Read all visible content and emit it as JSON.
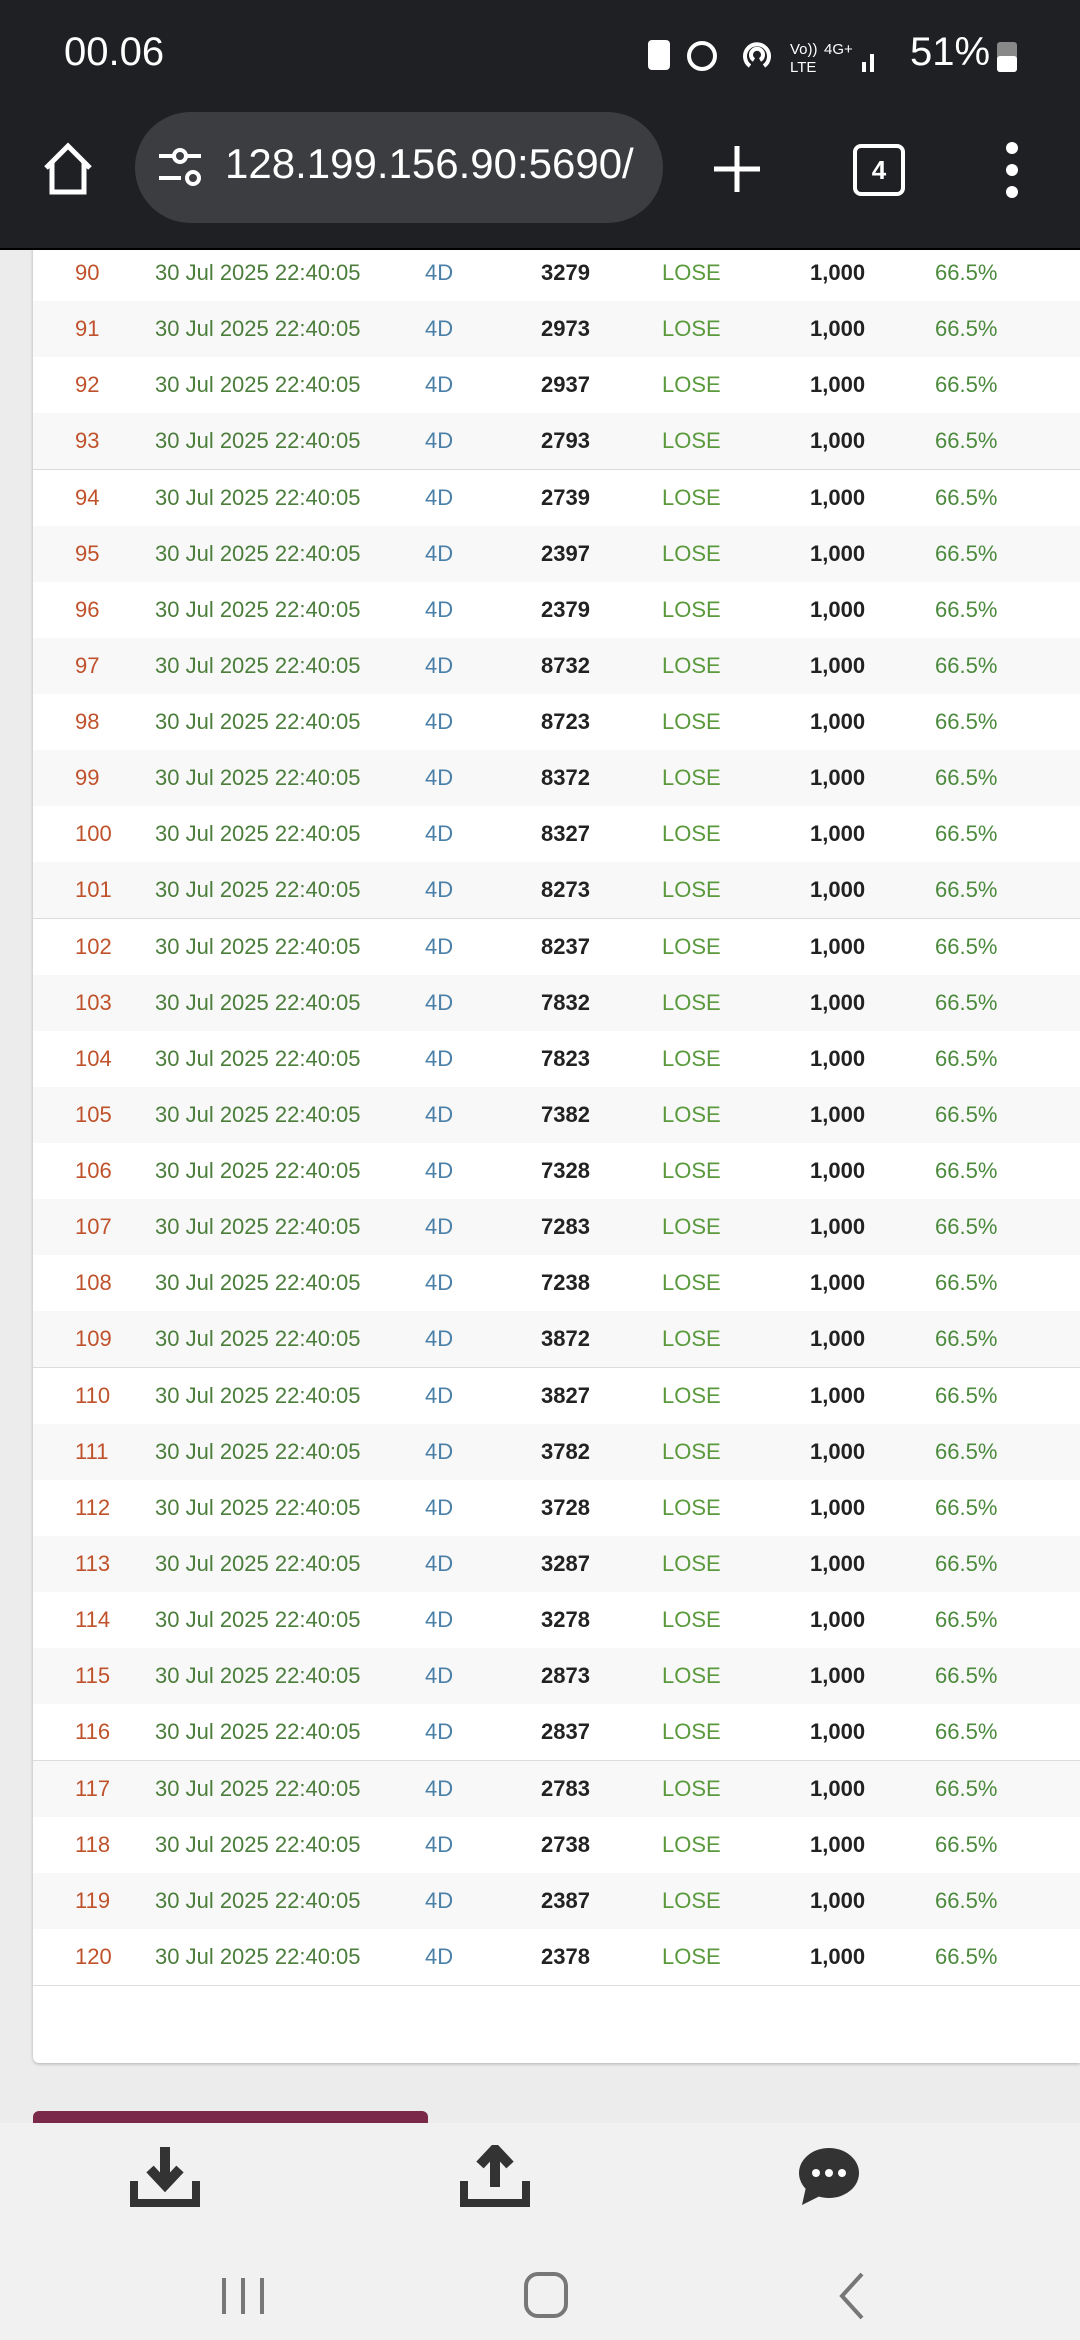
{
  "status_bar": {
    "time": "00.06",
    "battery": "51%"
  },
  "browser": {
    "url": "128.199.156.90:5690/",
    "tab_count": "4"
  },
  "table": {
    "rows": [
      [
        "90",
        "30 Jul 2025 22:40:05",
        "4D",
        "3279",
        "LOSE",
        "1,000",
        "66.5%"
      ],
      [
        "91",
        "30 Jul 2025 22:40:05",
        "4D",
        "2973",
        "LOSE",
        "1,000",
        "66.5%"
      ],
      [
        "92",
        "30 Jul 2025 22:40:05",
        "4D",
        "2937",
        "LOSE",
        "1,000",
        "66.5%"
      ],
      [
        "93",
        "30 Jul 2025 22:40:05",
        "4D",
        "2793",
        "LOSE",
        "1,000",
        "66.5%"
      ],
      [
        "94",
        "30 Jul 2025 22:40:05",
        "4D",
        "2739",
        "LOSE",
        "1,000",
        "66.5%"
      ],
      [
        "95",
        "30 Jul 2025 22:40:05",
        "4D",
        "2397",
        "LOSE",
        "1,000",
        "66.5%"
      ],
      [
        "96",
        "30 Jul 2025 22:40:05",
        "4D",
        "2379",
        "LOSE",
        "1,000",
        "66.5%"
      ],
      [
        "97",
        "30 Jul 2025 22:40:05",
        "4D",
        "8732",
        "LOSE",
        "1,000",
        "66.5%"
      ],
      [
        "98",
        "30 Jul 2025 22:40:05",
        "4D",
        "8723",
        "LOSE",
        "1,000",
        "66.5%"
      ],
      [
        "99",
        "30 Jul 2025 22:40:05",
        "4D",
        "8372",
        "LOSE",
        "1,000",
        "66.5%"
      ],
      [
        "100",
        "30 Jul 2025 22:40:05",
        "4D",
        "8327",
        "LOSE",
        "1,000",
        "66.5%"
      ],
      [
        "101",
        "30 Jul 2025 22:40:05",
        "4D",
        "8273",
        "LOSE",
        "1,000",
        "66.5%"
      ],
      [
        "102",
        "30 Jul 2025 22:40:05",
        "4D",
        "8237",
        "LOSE",
        "1,000",
        "66.5%"
      ],
      [
        "103",
        "30 Jul 2025 22:40:05",
        "4D",
        "7832",
        "LOSE",
        "1,000",
        "66.5%"
      ],
      [
        "104",
        "30 Jul 2025 22:40:05",
        "4D",
        "7823",
        "LOSE",
        "1,000",
        "66.5%"
      ],
      [
        "105",
        "30 Jul 2025 22:40:05",
        "4D",
        "7382",
        "LOSE",
        "1,000",
        "66.5%"
      ],
      [
        "106",
        "30 Jul 2025 22:40:05",
        "4D",
        "7328",
        "LOSE",
        "1,000",
        "66.5%"
      ],
      [
        "107",
        "30 Jul 2025 22:40:05",
        "4D",
        "7283",
        "LOSE",
        "1,000",
        "66.5%"
      ],
      [
        "108",
        "30 Jul 2025 22:40:05",
        "4D",
        "7238",
        "LOSE",
        "1,000",
        "66.5%"
      ],
      [
        "109",
        "30 Jul 2025 22:40:05",
        "4D",
        "3872",
        "LOSE",
        "1,000",
        "66.5%"
      ],
      [
        "110",
        "30 Jul 2025 22:40:05",
        "4D",
        "3827",
        "LOSE",
        "1,000",
        "66.5%"
      ],
      [
        "111",
        "30 Jul 2025 22:40:05",
        "4D",
        "3782",
        "LOSE",
        "1,000",
        "66.5%"
      ],
      [
        "112",
        "30 Jul 2025 22:40:05",
        "4D",
        "3728",
        "LOSE",
        "1,000",
        "66.5%"
      ],
      [
        "113",
        "30 Jul 2025 22:40:05",
        "4D",
        "3287",
        "LOSE",
        "1,000",
        "66.5%"
      ],
      [
        "114",
        "30 Jul 2025 22:40:05",
        "4D",
        "3278",
        "LOSE",
        "1,000",
        "66.5%"
      ],
      [
        "115",
        "30 Jul 2025 22:40:05",
        "4D",
        "2873",
        "LOSE",
        "1,000",
        "66.5%"
      ],
      [
        "116",
        "30 Jul 2025 22:40:05",
        "4D",
        "2837",
        "LOSE",
        "1,000",
        "66.5%"
      ],
      [
        "117",
        "30 Jul 2025 22:40:05",
        "4D",
        "2783",
        "LOSE",
        "1,000",
        "66.5%"
      ],
      [
        "118",
        "30 Jul 2025 22:40:05",
        "4D",
        "2738",
        "LOSE",
        "1,000",
        "66.5%"
      ],
      [
        "119",
        "30 Jul 2025 22:40:05",
        "4D",
        "2387",
        "LOSE",
        "1,000",
        "66.5%"
      ],
      [
        "120",
        "30 Jul 2025 22:40:05",
        "4D",
        "2378",
        "LOSE",
        "1,000",
        "66.5%"
      ]
    ]
  }
}
